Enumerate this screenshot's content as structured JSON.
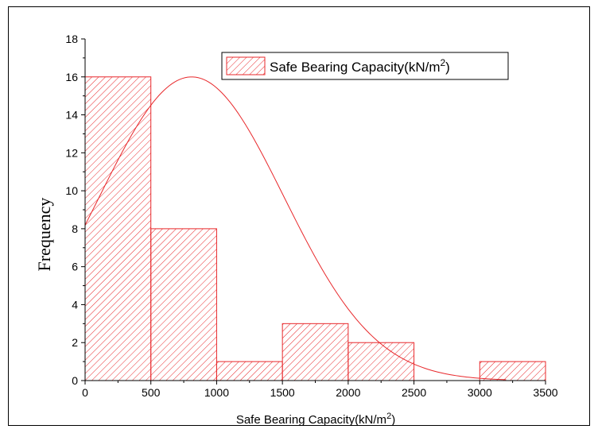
{
  "chart_data": {
    "type": "bar",
    "title": "",
    "xlabel": "Safe Bearing Capacity(kN/m",
    "xlabel_sup": "2",
    "xlabel_end": ")",
    "ylabel": "Frequency",
    "xlim": [
      0,
      3500
    ],
    "ylim": [
      0,
      18
    ],
    "x_ticks": [
      "0",
      "500",
      "1000",
      "1500",
      "2000",
      "2500",
      "3000",
      "3500"
    ],
    "y_ticks": [
      "0",
      "2",
      "4",
      "6",
      "8",
      "10",
      "12",
      "14",
      "16",
      "18"
    ],
    "bins": [
      {
        "start": 0,
        "end": 500,
        "value": 16
      },
      {
        "start": 500,
        "end": 1000,
        "value": 8
      },
      {
        "start": 1000,
        "end": 1500,
        "value": 1
      },
      {
        "start": 1500,
        "end": 2000,
        "value": 3
      },
      {
        "start": 2000,
        "end": 2500,
        "value": 2
      },
      {
        "start": 3000,
        "end": 3500,
        "value": 1
      }
    ],
    "fit_curve": {
      "type": "normal",
      "mean": 810,
      "std": 700,
      "peak": 16
    },
    "series": [
      {
        "name": "Safe Bearing Capacity(kN/m",
        "name_sup": "2",
        "name_end": ")"
      }
    ],
    "legend_position": "top-right",
    "grid": false,
    "color": "#e8282b"
  }
}
